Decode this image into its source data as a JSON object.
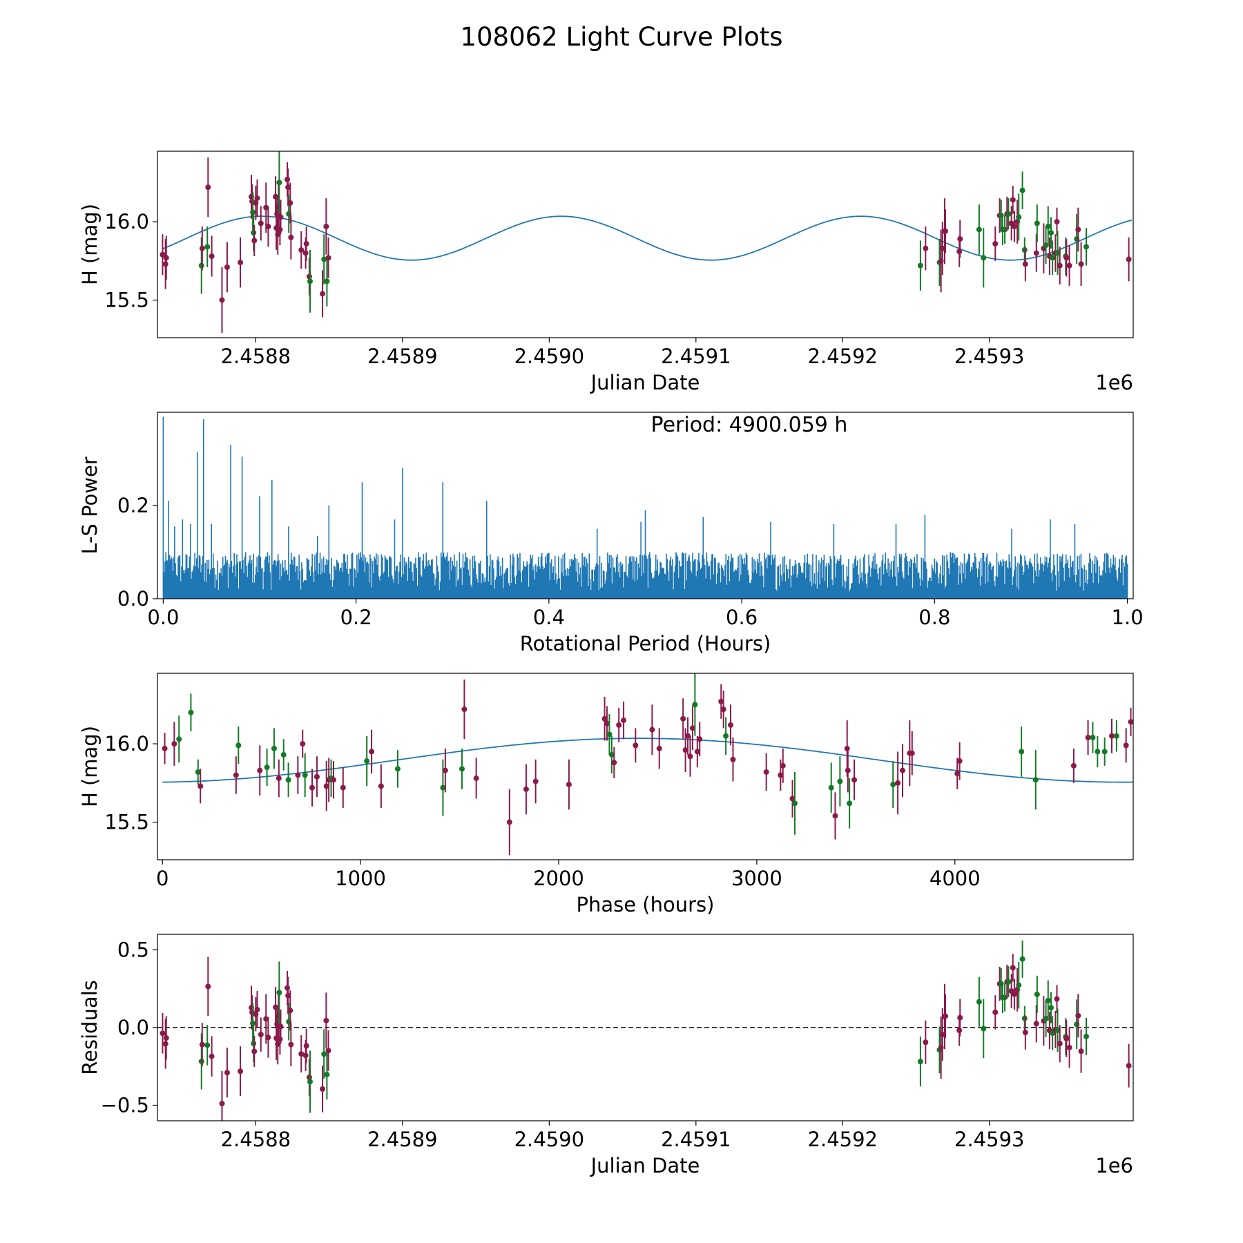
{
  "figure_title": "108062 Light Curve Plots",
  "colors": {
    "fit": "#1f77b4",
    "periodogram": "#1f77b4",
    "filter_r": "#8b1a4a",
    "filter_g": "#137a26",
    "zero_line": "#000000",
    "axes": "#000000"
  },
  "chart_data": [
    {
      "id": "light-curve",
      "type": "scatter",
      "xlabel": "Julian Date",
      "ylabel": "H (mag)",
      "xlim": [
        2458733,
        2459398
      ],
      "ylim": [
        15.26,
        16.45
      ],
      "xticks": [
        2458800,
        2458900,
        2459000,
        2459100,
        2459200,
        2459300
      ],
      "xtick_labels": [
        "2.4588",
        "2.4589",
        "2.4590",
        "2.4591",
        "2.4592",
        "2.4593"
      ],
      "x_offset_label": "1e6",
      "yticks": [
        15.5,
        16.0
      ],
      "ytick_labels": [
        "15.5",
        "16.0"
      ],
      "model": {
        "mean": 15.895,
        "amplitude": 0.14,
        "period_days": 204.17,
        "phase_ref_jd": 2458804
      }
    },
    {
      "id": "periodogram",
      "type": "line",
      "xlabel": "Rotational Period (Hours)",
      "ylabel": "L-S Power",
      "annotation": "Period: 4900.059 h",
      "xlim": [
        -0.006,
        1.006
      ],
      "ylim": [
        0.0,
        0.4
      ],
      "xticks": [
        0.0,
        0.2,
        0.4,
        0.6,
        0.8,
        1.0
      ],
      "xtick_labels": [
        "0.0",
        "0.2",
        "0.4",
        "0.6",
        "0.8",
        "1.0"
      ],
      "yticks": [
        0.0,
        0.2
      ],
      "ytick_labels": [
        "0.0",
        "0.2"
      ],
      "x_range": [
        0.0,
        1.0
      ],
      "sample_count": 1100,
      "typical_max": 0.1,
      "peaks": [
        [
          0.0,
          0.39
        ],
        [
          0.005,
          0.21
        ],
        [
          0.012,
          0.155
        ],
        [
          0.02,
          0.17
        ],
        [
          0.028,
          0.16
        ],
        [
          0.035,
          0.315
        ],
        [
          0.042,
          0.385
        ],
        [
          0.05,
          0.16
        ],
        [
          0.07,
          0.33
        ],
        [
          0.082,
          0.305
        ],
        [
          0.1,
          0.22
        ],
        [
          0.113,
          0.255
        ],
        [
          0.13,
          0.155
        ],
        [
          0.16,
          0.135
        ],
        [
          0.172,
          0.2
        ],
        [
          0.206,
          0.25
        ],
        [
          0.24,
          0.17
        ],
        [
          0.248,
          0.28
        ],
        [
          0.29,
          0.25
        ],
        [
          0.335,
          0.21
        ],
        [
          0.45,
          0.15
        ],
        [
          0.495,
          0.165
        ],
        [
          0.5,
          0.19
        ],
        [
          0.56,
          0.175
        ],
        [
          0.63,
          0.165
        ],
        [
          0.695,
          0.16
        ],
        [
          0.76,
          0.16
        ],
        [
          0.79,
          0.18
        ],
        [
          0.88,
          0.15
        ],
        [
          0.92,
          0.17
        ],
        [
          0.945,
          0.16
        ]
      ]
    },
    {
      "id": "phased-light-curve",
      "type": "scatter",
      "xlabel": "Phase (hours)",
      "ylabel": "H (mag)",
      "xlim": [
        -25,
        4900
      ],
      "ylim": [
        15.26,
        16.45
      ],
      "xticks": [
        0,
        1000,
        2000,
        3000,
        4000
      ],
      "xtick_labels": [
        "0",
        "1000",
        "2000",
        "3000",
        "4000"
      ],
      "yticks": [
        15.5,
        16.0
      ],
      "ytick_labels": [
        "15.5",
        "16.0"
      ],
      "model": {
        "mean": 15.895,
        "amplitude": 0.14,
        "period_hours": 4900.059,
        "phase_ref_hours": 2400
      }
    },
    {
      "id": "residuals",
      "type": "scatter",
      "xlabel": "Julian Date",
      "ylabel": "Residuals",
      "xlim": [
        2458733,
        2459398
      ],
      "ylim": [
        -0.6,
        0.6
      ],
      "xticks": [
        2458800,
        2458900,
        2459000,
        2459100,
        2459200,
        2459300
      ],
      "xtick_labels": [
        "2.4588",
        "2.4589",
        "2.4590",
        "2.4591",
        "2.4592",
        "2.4593"
      ],
      "x_offset_label": "1e6",
      "yticks": [
        -0.5,
        0.0,
        0.5
      ],
      "ytick_labels": [
        "−0.5",
        "0.0",
        "0.5"
      ],
      "zero_line": 0.0
    }
  ],
  "observations": [
    {
      "jd": 2458736.5,
      "mag": 15.79,
      "err": 0.13,
      "band": "r"
    },
    {
      "jd": 2458738.5,
      "mag": 15.73,
      "err": 0.16,
      "band": "r"
    },
    {
      "jd": 2458739.0,
      "mag": 15.77,
      "err": 0.14,
      "band": "r"
    },
    {
      "jd": 2458763.0,
      "mag": 15.72,
      "err": 0.18,
      "band": "g"
    },
    {
      "jd": 2458763.5,
      "mag": 15.83,
      "err": 0.14,
      "band": "r"
    },
    {
      "jd": 2458767.0,
      "mag": 15.84,
      "err": 0.13,
      "band": "g"
    },
    {
      "jd": 2458767.5,
      "mag": 16.22,
      "err": 0.19,
      "band": "r"
    },
    {
      "jd": 2458770.0,
      "mag": 15.78,
      "err": 0.13,
      "band": "r"
    },
    {
      "jd": 2458777.0,
      "mag": 15.5,
      "err": 0.21,
      "band": "r"
    },
    {
      "jd": 2458780.5,
      "mag": 15.71,
      "err": 0.16,
      "band": "r"
    },
    {
      "jd": 2458789.5,
      "mag": 15.74,
      "err": 0.16,
      "band": "r"
    },
    {
      "jd": 2458797.0,
      "mag": 16.16,
      "err": 0.14,
      "band": "r"
    },
    {
      "jd": 2458797.5,
      "mag": 16.13,
      "err": 0.11,
      "band": "r"
    },
    {
      "jd": 2458798.0,
      "mag": 16.06,
      "err": 0.13,
      "band": "g"
    },
    {
      "jd": 2458798.5,
      "mag": 15.93,
      "err": 0.12,
      "band": "g"
    },
    {
      "jd": 2458799.0,
      "mag": 15.88,
      "err": 0.1,
      "band": "r"
    },
    {
      "jd": 2458800.0,
      "mag": 16.12,
      "err": 0.11,
      "band": "r"
    },
    {
      "jd": 2458801.0,
      "mag": 16.15,
      "err": 0.12,
      "band": "r"
    },
    {
      "jd": 2458803.5,
      "mag": 15.99,
      "err": 0.11,
      "band": "r"
    },
    {
      "jd": 2458807.0,
      "mag": 16.09,
      "err": 0.16,
      "band": "r"
    },
    {
      "jd": 2458808.5,
      "mag": 15.97,
      "err": 0.13,
      "band": "r"
    },
    {
      "jd": 2458813.5,
      "mag": 16.16,
      "err": 0.13,
      "band": "r"
    },
    {
      "jd": 2458814.0,
      "mag": 15.96,
      "err": 0.14,
      "band": "r"
    },
    {
      "jd": 2458814.5,
      "mag": 16.05,
      "err": 0.12,
      "band": "r"
    },
    {
      "jd": 2458815.0,
      "mag": 15.92,
      "err": 0.13,
      "band": "r"
    },
    {
      "jd": 2458815.5,
      "mag": 16.1,
      "err": 0.14,
      "band": "r"
    },
    {
      "jd": 2458816.0,
      "mag": 16.25,
      "err": 0.2,
      "band": "g"
    },
    {
      "jd": 2458816.5,
      "mag": 15.95,
      "err": 0.1,
      "band": "r"
    },
    {
      "jd": 2458817.0,
      "mag": 16.03,
      "err": 0.11,
      "band": "r"
    },
    {
      "jd": 2458821.5,
      "mag": 16.27,
      "err": 0.11,
      "band": "r"
    },
    {
      "jd": 2458822.0,
      "mag": 16.22,
      "err": 0.12,
      "band": "r"
    },
    {
      "jd": 2458822.5,
      "mag": 16.05,
      "err": 0.12,
      "band": "g"
    },
    {
      "jd": 2458823.5,
      "mag": 16.12,
      "err": 0.13,
      "band": "r"
    },
    {
      "jd": 2458824.0,
      "mag": 15.9,
      "err": 0.14,
      "band": "r"
    },
    {
      "jd": 2458831.0,
      "mag": 15.82,
      "err": 0.12,
      "band": "r"
    },
    {
      "jd": 2458834.0,
      "mag": 15.8,
      "err": 0.1,
      "band": "r"
    },
    {
      "jd": 2458834.5,
      "mag": 15.86,
      "err": 0.11,
      "band": "r"
    },
    {
      "jd": 2458836.5,
      "mag": 15.65,
      "err": 0.12,
      "band": "r"
    },
    {
      "jd": 2458837.0,
      "mag": 15.62,
      "err": 0.2,
      "band": "g"
    },
    {
      "jd": 2458845.5,
      "mag": 15.54,
      "err": 0.15,
      "band": "r"
    },
    {
      "jd": 2458846.5,
      "mag": 15.76,
      "err": 0.16,
      "band": "g"
    },
    {
      "jd": 2458848.0,
      "mag": 15.97,
      "err": 0.18,
      "band": "r"
    },
    {
      "jd": 2458848.5,
      "mag": 15.62,
      "err": 0.16,
      "band": "g"
    },
    {
      "jd": 2458849.5,
      "mag": 15.77,
      "err": 0.13,
      "band": "r"
    },
    {
      "jd": 2459253.0,
      "mag": 15.72,
      "err": 0.16,
      "band": "g"
    },
    {
      "jd": 2459256.5,
      "mag": 15.83,
      "err": 0.14,
      "band": "r"
    },
    {
      "jd": 2459266.0,
      "mag": 15.74,
      "err": 0.15,
      "band": "g"
    },
    {
      "jd": 2459267.0,
      "mag": 15.75,
      "err": 0.2,
      "band": "r"
    },
    {
      "jd": 2459268.0,
      "mag": 15.83,
      "err": 0.17,
      "band": "r"
    },
    {
      "jd": 2459269.5,
      "mag": 15.94,
      "err": 0.21,
      "band": "r"
    },
    {
      "jd": 2459270.0,
      "mag": 15.94,
      "err": 0.14,
      "band": "r"
    },
    {
      "jd": 2459279.5,
      "mag": 15.81,
      "err": 0.1,
      "band": "r"
    },
    {
      "jd": 2459280.0,
      "mag": 15.89,
      "err": 0.12,
      "band": "r"
    },
    {
      "jd": 2459293.0,
      "mag": 15.95,
      "err": 0.16,
      "band": "g"
    },
    {
      "jd": 2459296.0,
      "mag": 15.77,
      "err": 0.19,
      "band": "g"
    },
    {
      "jd": 2459304.0,
      "mag": 15.86,
      "err": 0.11,
      "band": "r"
    },
    {
      "jd": 2459307.0,
      "mag": 16.04,
      "err": 0.11,
      "band": "r"
    },
    {
      "jd": 2459308.0,
      "mag": 16.04,
      "err": 0.1,
      "band": "g"
    },
    {
      "jd": 2459309.0,
      "mag": 15.95,
      "err": 0.1,
      "band": "g"
    },
    {
      "jd": 2459310.5,
      "mag": 15.95,
      "err": 0.09,
      "band": "g"
    },
    {
      "jd": 2459312.0,
      "mag": 16.05,
      "err": 0.11,
      "band": "r"
    },
    {
      "jd": 2459313.0,
      "mag": 16.05,
      "err": 0.1,
      "band": "g"
    },
    {
      "jd": 2459315.0,
      "mag": 15.99,
      "err": 0.11,
      "band": "r"
    },
    {
      "jd": 2459316.0,
      "mag": 16.14,
      "err": 0.09,
      "band": "r"
    },
    {
      "jd": 2459317.0,
      "mag": 15.97,
      "err": 0.1,
      "band": "r"
    },
    {
      "jd": 2459319.0,
      "mag": 16.0,
      "err": 0.14,
      "band": "r"
    },
    {
      "jd": 2459320.0,
      "mag": 16.03,
      "err": 0.15,
      "band": "g"
    },
    {
      "jd": 2459322.5,
      "mag": 16.2,
      "err": 0.12,
      "band": "g"
    },
    {
      "jd": 2459324.0,
      "mag": 15.82,
      "err": 0.08,
      "band": "g"
    },
    {
      "jd": 2459324.5,
      "mag": 15.73,
      "err": 0.11,
      "band": "r"
    },
    {
      "jd": 2459332.0,
      "mag": 15.8,
      "err": 0.12,
      "band": "r"
    },
    {
      "jd": 2459332.5,
      "mag": 15.99,
      "err": 0.12,
      "band": "g"
    },
    {
      "jd": 2459337.0,
      "mag": 15.83,
      "err": 0.16,
      "band": "r"
    },
    {
      "jd": 2459338.5,
      "mag": 15.85,
      "err": 0.12,
      "band": "g"
    },
    {
      "jd": 2459340.0,
      "mag": 15.97,
      "err": 0.13,
      "band": "g"
    },
    {
      "jd": 2459341.0,
      "mag": 15.78,
      "err": 0.12,
      "band": "r"
    },
    {
      "jd": 2459342.0,
      "mag": 15.93,
      "err": 0.1,
      "band": "g"
    },
    {
      "jd": 2459343.0,
      "mag": 15.77,
      "err": 0.11,
      "band": "g"
    },
    {
      "jd": 2459345.0,
      "mag": 15.8,
      "err": 0.12,
      "band": "r"
    },
    {
      "jd": 2459346.0,
      "mag": 16.0,
      "err": 0.09,
      "band": "r"
    },
    {
      "jd": 2459346.5,
      "mag": 15.8,
      "err": 0.14,
      "band": "g"
    },
    {
      "jd": 2459348.0,
      "mag": 15.72,
      "err": 0.12,
      "band": "r"
    },
    {
      "jd": 2459352.0,
      "mag": 15.78,
      "err": 0.12,
      "band": "g"
    },
    {
      "jd": 2459352.5,
      "mag": 15.77,
      "err": 0.12,
      "band": "r"
    },
    {
      "jd": 2459354.5,
      "mag": 15.72,
      "err": 0.13,
      "band": "r"
    },
    {
      "jd": 2459359.5,
      "mag": 15.89,
      "err": 0.16,
      "band": "g"
    },
    {
      "jd": 2459360.5,
      "mag": 15.95,
      "err": 0.14,
      "band": "r"
    },
    {
      "jd": 2459362.5,
      "mag": 15.73,
      "err": 0.14,
      "band": "r"
    },
    {
      "jd": 2459366.0,
      "mag": 15.84,
      "err": 0.12,
      "band": "g"
    },
    {
      "jd": 2459395.0,
      "mag": 15.76,
      "err": 0.14,
      "band": "r"
    }
  ]
}
